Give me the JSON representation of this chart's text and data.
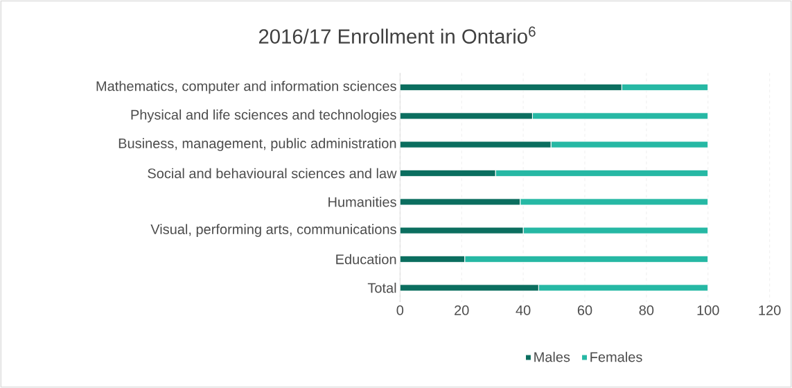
{
  "chart_data": {
    "type": "bar",
    "orientation": "horizontal",
    "stacked": true,
    "title": "2016/17 Enrollment in Ontario$^{6}$",
    "categories": [
      "Mathematics, computer and information sciences",
      "Physical and life sciences and technologies",
      "Business, management, public administration",
      "Social and behavioural sciences and law",
      "Humanities",
      "Visual, performing arts, communications",
      "Education",
      "Total"
    ],
    "series": [
      {
        "name": "Males",
        "color": "#0b6e5f",
        "values": [
          72,
          43,
          49,
          31,
          39,
          40,
          21,
          45
        ]
      },
      {
        "name": "Females",
        "color": "#26b8a4",
        "values": [
          28,
          57,
          51,
          69,
          61,
          60,
          79,
          55
        ]
      }
    ],
    "xlim": [
      0,
      120
    ],
    "xticks": [
      0,
      20,
      40,
      60,
      80,
      100,
      120
    ],
    "grid": "x",
    "legend": "bottom"
  }
}
